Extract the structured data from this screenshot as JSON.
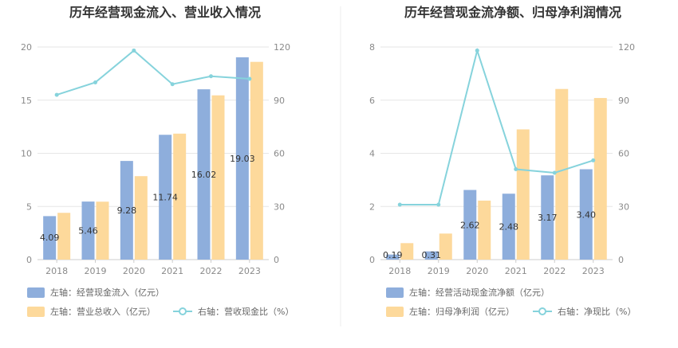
{
  "chart_data": [
    {
      "type": "bar",
      "title": "历年经营现金流入、营业收入情况",
      "categories": [
        "2018",
        "2019",
        "2020",
        "2021",
        "2022",
        "2023"
      ],
      "left_axis": {
        "ylim": [
          0,
          20
        ],
        "ticks": [
          "0",
          "5",
          "10",
          "15",
          "20"
        ]
      },
      "right_axis": {
        "ylim": [
          0,
          120
        ],
        "ticks": [
          "0",
          "30",
          "60",
          "90",
          "120"
        ]
      },
      "grid": true,
      "legend_position": "bottom-left",
      "series": [
        {
          "name": "左轴：经营现金流入（亿元）",
          "axis": "left",
          "kind": "bar",
          "color": "#8eaedc",
          "values": [
            4.09,
            5.46,
            9.28,
            11.74,
            16.02,
            19.03
          ],
          "labels": [
            "4.09",
            "5.46",
            "9.28",
            "11.74",
            "16.02",
            "19.03"
          ]
        },
        {
          "name": "左轴：营业总收入（亿元）",
          "axis": "left",
          "kind": "bar",
          "color": "#fdd99b",
          "values": [
            4.4,
            5.45,
            7.85,
            11.85,
            15.45,
            18.6
          ]
        },
        {
          "name": "右轴：营收现金比（%）",
          "axis": "right",
          "kind": "line",
          "color": "#86d3dc",
          "values": [
            93,
            100,
            118,
            99,
            103.5,
            102
          ]
        }
      ]
    },
    {
      "type": "bar",
      "title": "历年经营现金流净额、归母净利润情况",
      "categories": [
        "2018",
        "2019",
        "2020",
        "2021",
        "2022",
        "2023"
      ],
      "left_axis": {
        "ylim": [
          0,
          8
        ],
        "ticks": [
          "0",
          "2",
          "4",
          "6",
          "8"
        ]
      },
      "right_axis": {
        "ylim": [
          0,
          120
        ],
        "ticks": [
          "0",
          "30",
          "60",
          "90",
          "120"
        ]
      },
      "grid": true,
      "legend_position": "bottom-left",
      "series": [
        {
          "name": "左轴：经营活动现金流净额（亿元）",
          "axis": "left",
          "kind": "bar",
          "color": "#8eaedc",
          "values": [
            0.19,
            0.31,
            2.62,
            2.48,
            3.17,
            3.4
          ],
          "labels": [
            "0.19",
            "0.31",
            "2.62",
            "2.48",
            "3.17",
            "3.40"
          ]
        },
        {
          "name": "左轴：归母净利润（亿元）",
          "axis": "left",
          "kind": "bar",
          "color": "#fdd99b",
          "values": [
            0.62,
            0.98,
            2.22,
            4.9,
            6.42,
            6.08
          ]
        },
        {
          "name": "右轴：净现比（%）",
          "axis": "right",
          "kind": "line",
          "color": "#86d3dc",
          "values": [
            31,
            31,
            118,
            51,
            49,
            56
          ]
        }
      ]
    }
  ]
}
